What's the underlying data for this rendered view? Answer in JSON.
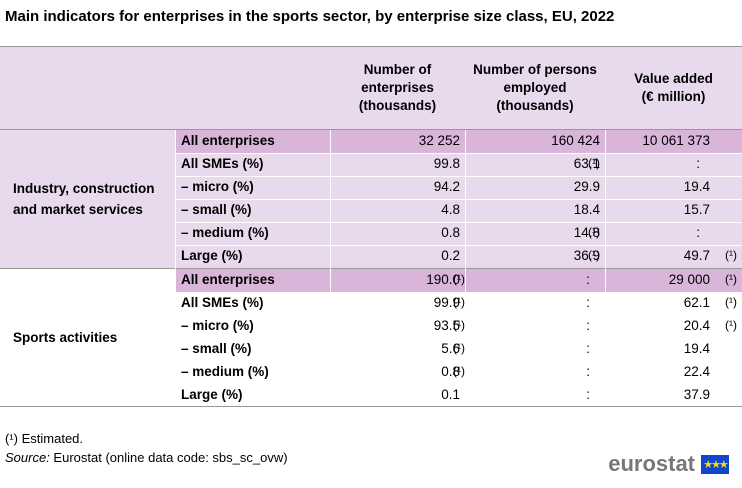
{
  "title": "Main indicators for enterprises in the sports sector, by enterprise size class, EU, 2022",
  "columns": [
    {
      "label": "Number of\nenterprises\n(thousands)"
    },
    {
      "label": "Number of persons\nemployed\n(thousands)"
    },
    {
      "label": "Value added\n(€ million)"
    }
  ],
  "sections": [
    {
      "name": "Industry, construction and market services",
      "rows": [
        {
          "label": "All enterprises",
          "values": [
            "32 252",
            "160 424",
            "10 061 373"
          ],
          "flags": [
            "",
            "",
            ""
          ]
        },
        {
          "label": "All SMEs (%)",
          "values": [
            "99.8",
            "63.1",
            ":"
          ],
          "flags": [
            "",
            "(¹)",
            ""
          ]
        },
        {
          "label": "– micro (%)",
          "values": [
            "94.2",
            "29.9",
            "19.4"
          ],
          "flags": [
            "",
            "",
            ""
          ]
        },
        {
          "label": "– small (%)",
          "values": [
            "4.8",
            "18.4",
            "15.7"
          ],
          "flags": [
            "",
            "",
            ""
          ]
        },
        {
          "label": "– medium (%)",
          "values": [
            "0.8",
            "14.8",
            ":"
          ],
          "flags": [
            "",
            "(¹)",
            ""
          ]
        },
        {
          "label": "Large (%)",
          "values": [
            "0.2",
            "36.9",
            "49.7"
          ],
          "flags": [
            "",
            "(¹)",
            "(¹)"
          ]
        }
      ]
    },
    {
      "name": "Sports activities",
      "rows": [
        {
          "label": "All enterprises",
          "values": [
            "190.0",
            ":",
            "29 000"
          ],
          "flags": [
            "(¹)",
            "",
            "(¹)"
          ]
        },
        {
          "label": "All SMEs (%)",
          "values": [
            "99.9",
            ":",
            "62.1"
          ],
          "flags": [
            "(¹)",
            "",
            "(¹)"
          ]
        },
        {
          "label": "– micro (%)",
          "values": [
            "93.5",
            ":",
            "20.4"
          ],
          "flags": [
            "(¹)",
            "",
            "(¹)"
          ]
        },
        {
          "label": "– small (%)",
          "values": [
            "5.6",
            ":",
            "19.4"
          ],
          "flags": [
            "(¹)",
            "",
            ""
          ]
        },
        {
          "label": "– medium (%)",
          "values": [
            "0.8",
            ":",
            "22.4"
          ],
          "flags": [
            "(¹)",
            "",
            ""
          ]
        },
        {
          "label": "Large (%)",
          "values": [
            "0.1",
            ":",
            "37.9"
          ],
          "flags": [
            "",
            "",
            ""
          ]
        }
      ]
    }
  ],
  "footnote": "(¹) Estimated.",
  "source_label": "Source:",
  "source_text": " Eurostat (online data code: sbs_sc_ovw)",
  "logo_text": "eurostat",
  "colors": {
    "header_bg": "#e8d9ed",
    "total_row_bg": "#d9b6d9",
    "flag_blue": "#0e47cb",
    "flag_gold": "#ffd617"
  }
}
